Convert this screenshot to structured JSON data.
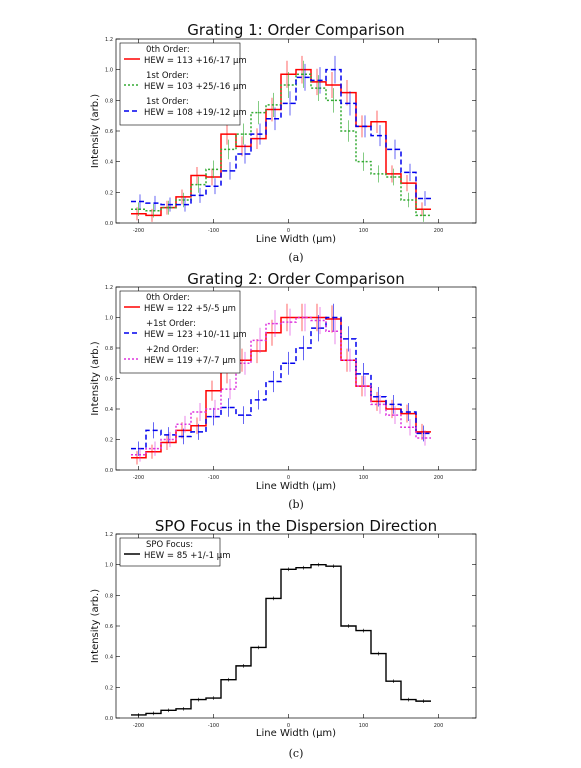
{
  "chart_data": [
    {
      "type": "line",
      "title": "Grating 1: Order Comparison",
      "xlabel": "Line Width (μm)",
      "ylabel": "Intensity (arb.)",
      "caption": "(a)",
      "xlim": [
        -230,
        250
      ],
      "ylim": [
        0,
        1.2
      ],
      "xticks": [
        -200,
        -100,
        0,
        100,
        200
      ],
      "xtick_labels": [
        "-200",
        "-100",
        "0",
        "100",
        "200"
      ],
      "yticks": [
        0.0,
        0.2,
        0.4,
        0.6,
        0.8,
        1.0,
        1.2
      ],
      "ytick_labels": [
        "0.0",
        "0.2",
        "0.4",
        "0.6",
        "0.8",
        "1.0",
        "1.2"
      ],
      "legend_position": "top-left",
      "series": [
        {
          "legend_title": "0th Order:",
          "legend_hew": "HEW = 113 +16/-17 μm",
          "color": "#ff0000",
          "dash": "",
          "x": [
            -200,
            -180,
            -160,
            -140,
            -120,
            -100,
            -80,
            -60,
            -40,
            -20,
            0,
            20,
            40,
            60,
            80,
            100,
            120,
            140,
            160,
            180
          ],
          "values": [
            0.06,
            0.05,
            0.1,
            0.17,
            0.31,
            0.3,
            0.58,
            0.5,
            0.55,
            0.74,
            0.97,
            1.0,
            0.92,
            0.9,
            0.85,
            0.63,
            0.66,
            0.32,
            0.26,
            0.09
          ]
        },
        {
          "legend_title": "1st Order:",
          "legend_hew": "HEW = 103 +25/-16 μm",
          "color": "#33aa33",
          "dash": "2,2",
          "x": [
            -200,
            -180,
            -160,
            -140,
            -120,
            -100,
            -80,
            -60,
            -40,
            -20,
            0,
            20,
            40,
            60,
            80,
            100,
            120,
            140,
            160,
            180
          ],
          "values": [
            0.09,
            0.08,
            0.1,
            0.15,
            0.25,
            0.35,
            0.48,
            0.58,
            0.72,
            0.77,
            0.9,
            0.97,
            0.88,
            0.8,
            0.6,
            0.4,
            0.32,
            0.3,
            0.15,
            0.05
          ]
        },
        {
          "legend_title": "1st Order:",
          "legend_hew": "HEW = 108 +19/-12 μm",
          "color": "#0000ee",
          "dash": "5,3",
          "x": [
            -200,
            -180,
            -160,
            -140,
            -120,
            -100,
            -80,
            -60,
            -40,
            -20,
            0,
            20,
            40,
            60,
            80,
            100,
            120,
            140,
            160,
            180
          ],
          "values": [
            0.14,
            0.13,
            0.12,
            0.12,
            0.18,
            0.24,
            0.34,
            0.45,
            0.58,
            0.68,
            0.78,
            0.95,
            0.93,
            1.0,
            0.78,
            0.63,
            0.57,
            0.48,
            0.33,
            0.16
          ]
        }
      ]
    },
    {
      "type": "line",
      "title": "Grating 2: Order Comparison",
      "xlabel": "Line Width (μm)",
      "ylabel": "Intensity (arb.)",
      "caption": "(b)",
      "xlim": [
        -230,
        250
      ],
      "ylim": [
        0,
        1.2
      ],
      "xticks": [
        -200,
        -100,
        0,
        100,
        200
      ],
      "xtick_labels": [
        "-200",
        "-100",
        "0",
        "100",
        "200"
      ],
      "yticks": [
        0.0,
        0.2,
        0.4,
        0.6,
        0.8,
        1.0,
        1.2
      ],
      "ytick_labels": [
        "0.0",
        "0.2",
        "0.4",
        "0.6",
        "0.8",
        "1.0",
        "1.2"
      ],
      "legend_position": "top-left",
      "series": [
        {
          "legend_title": "0th Order:",
          "legend_hew": "HEW = 122 +5/-5 μm",
          "color": "#ff0000",
          "dash": "",
          "x": [
            -200,
            -180,
            -160,
            -140,
            -120,
            -100,
            -80,
            -60,
            -40,
            -20,
            0,
            20,
            40,
            60,
            80,
            100,
            120,
            140,
            160,
            180
          ],
          "values": [
            0.08,
            0.12,
            0.18,
            0.26,
            0.29,
            0.52,
            0.64,
            0.72,
            0.78,
            0.9,
            1.0,
            1.0,
            1.0,
            0.99,
            0.72,
            0.55,
            0.45,
            0.4,
            0.37,
            0.25
          ]
        },
        {
          "legend_title": "+1st Order:",
          "legend_hew": "HEW = 123 +10/-11 μm",
          "color": "#0000ee",
          "dash": "5,3",
          "x": [
            -200,
            -180,
            -160,
            -140,
            -120,
            -100,
            -80,
            -60,
            -40,
            -20,
            0,
            20,
            40,
            60,
            80,
            100,
            120,
            140,
            160,
            180
          ],
          "values": [
            0.14,
            0.26,
            0.23,
            0.22,
            0.25,
            0.35,
            0.41,
            0.36,
            0.46,
            0.58,
            0.7,
            0.8,
            0.93,
            1.0,
            0.86,
            0.63,
            0.48,
            0.43,
            0.38,
            0.24
          ]
        },
        {
          "legend_title": "+2nd Order:",
          "legend_hew": "HEW = 119 +7/-7 μm",
          "color": "#dd33dd",
          "dash": "2,2",
          "x": [
            -200,
            -180,
            -160,
            -140,
            -120,
            -100,
            -80,
            -60,
            -40,
            -20,
            0,
            20,
            40,
            60,
            80,
            100,
            120,
            140,
            160,
            180
          ],
          "values": [
            0.1,
            0.14,
            0.2,
            0.3,
            0.38,
            0.4,
            0.53,
            0.7,
            0.85,
            0.96,
            0.97,
            1.0,
            0.98,
            0.91,
            0.72,
            0.55,
            0.43,
            0.36,
            0.28,
            0.21
          ]
        }
      ]
    },
    {
      "type": "line",
      "title": "SPO Focus in the Dispersion Direction",
      "xlabel": "Line Width (μm)",
      "ylabel": "Intensity (arb.)",
      "caption": "(c)",
      "xlim": [
        -230,
        250
      ],
      "ylim": [
        0,
        1.2
      ],
      "xticks": [
        -200,
        -100,
        0,
        100,
        200
      ],
      "xtick_labels": [
        "-200",
        "-100",
        "0",
        "100",
        "200"
      ],
      "yticks": [
        0.0,
        0.2,
        0.4,
        0.6,
        0.8,
        1.0,
        1.2
      ],
      "ytick_labels": [
        "0.0",
        "0.2",
        "0.4",
        "0.6",
        "0.8",
        "1.0",
        "1.2"
      ],
      "legend_position": "top-left",
      "series": [
        {
          "legend_title": "SPO Focus:",
          "legend_hew": "HEW = 85 +1/-1 μm",
          "color": "#000000",
          "dash": "",
          "x": [
            -200,
            -180,
            -160,
            -140,
            -120,
            -100,
            -80,
            -60,
            -40,
            -20,
            0,
            20,
            40,
            60,
            80,
            100,
            120,
            140,
            160,
            180
          ],
          "values": [
            0.02,
            0.03,
            0.05,
            0.06,
            0.12,
            0.13,
            0.25,
            0.34,
            0.46,
            0.78,
            0.97,
            0.98,
            1.0,
            0.99,
            0.6,
            0.57,
            0.42,
            0.24,
            0.12,
            0.11
          ]
        }
      ]
    }
  ]
}
